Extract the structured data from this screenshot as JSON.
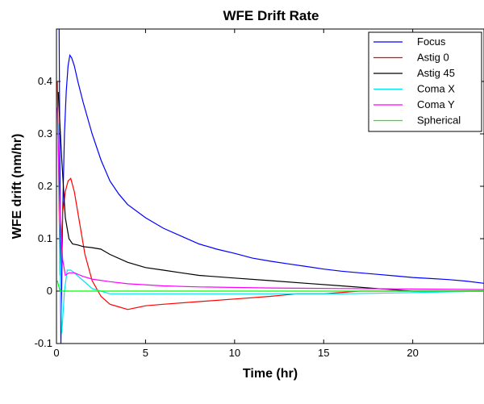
{
  "chart_data": {
    "type": "line",
    "title": "WFE Drift Rate",
    "xlabel": "Time (hr)",
    "ylabel": "WFE drift (nm/hr)",
    "xlim": [
      0,
      24
    ],
    "ylim": [
      -0.1,
      0.5
    ],
    "xticks": [
      0,
      5,
      10,
      15,
      20
    ],
    "yticks": [
      -0.1,
      0,
      0.1,
      0.2,
      0.3,
      0.4
    ],
    "grid": false,
    "legend_position": "top-right",
    "series": [
      {
        "name": "Focus",
        "color": "#0000ff",
        "x": [
          0.15,
          0.25,
          0.35,
          0.45,
          0.55,
          0.65,
          0.75,
          0.85,
          1.0,
          1.2,
          1.5,
          2.0,
          2.5,
          3.0,
          3.5,
          4.0,
          5.0,
          6.0,
          7.0,
          8.0,
          9.0,
          10.0,
          11.0,
          12.0,
          13.0,
          14.0,
          15.0,
          16.0,
          17.0,
          18.0,
          19.0,
          20.0,
          21.0,
          22.0,
          23.0,
          24.0
        ],
        "y": [
          0.5,
          -0.1,
          0.15,
          0.3,
          0.38,
          0.43,
          0.45,
          0.445,
          0.43,
          0.4,
          0.36,
          0.3,
          0.25,
          0.21,
          0.185,
          0.165,
          0.14,
          0.12,
          0.105,
          0.09,
          0.08,
          0.072,
          0.063,
          0.057,
          0.052,
          0.047,
          0.042,
          0.038,
          0.035,
          0.032,
          0.029,
          0.026,
          0.024,
          0.022,
          0.019,
          0.015
        ]
      },
      {
        "name": "Astig 0",
        "color": "#ff0000",
        "x": [
          0.05,
          0.2,
          0.35,
          0.5,
          0.65,
          0.8,
          1.0,
          1.3,
          1.6,
          2.0,
          2.5,
          3.0,
          3.5,
          4.0,
          5.0,
          6.0,
          8.0,
          10.0,
          12.0,
          13.5,
          15.0,
          17.0,
          19.0,
          21.0,
          23.0,
          24.0
        ],
        "y": [
          0.4,
          0.03,
          0.15,
          0.19,
          0.21,
          0.215,
          0.19,
          0.13,
          0.07,
          0.02,
          -0.01,
          -0.025,
          -0.03,
          -0.035,
          -0.028,
          -0.025,
          -0.02,
          -0.015,
          -0.01,
          -0.005,
          -0.005,
          0.0,
          0.0,
          0.0,
          0.0,
          0.0
        ]
      },
      {
        "name": "Astig 45",
        "color": "#000000",
        "x": [
          0.1,
          0.3,
          0.5,
          0.7,
          0.9,
          1.2,
          1.5,
          2.0,
          2.5,
          3.0,
          4.0,
          5.0,
          6.0,
          7.0,
          8.0,
          10.0,
          12.0,
          14.0,
          16.0,
          18.0,
          20.0,
          22.0,
          24.0
        ],
        "y": [
          0.38,
          0.25,
          0.14,
          0.1,
          0.09,
          0.088,
          0.085,
          0.083,
          0.08,
          0.07,
          0.055,
          0.045,
          0.04,
          0.035,
          0.03,
          0.025,
          0.02,
          0.015,
          0.01,
          0.005,
          0.0,
          0.0,
          0.0
        ]
      },
      {
        "name": "Coma X",
        "color": "#00e5ee",
        "x": [
          0.1,
          0.2,
          0.3,
          0.45,
          0.6,
          0.8,
          1.0,
          1.5,
          2.0,
          3.0,
          5.0,
          8.0,
          12.0,
          16.0,
          20.0,
          24.0
        ],
        "y": [
          0.32,
          0.05,
          -0.08,
          0.0,
          0.04,
          0.04,
          0.035,
          0.02,
          0.005,
          -0.005,
          -0.005,
          -0.005,
          -0.005,
          -0.005,
          -0.003,
          0.0
        ]
      },
      {
        "name": "Coma Y",
        "color": "#ff00ff",
        "x": [
          0.05,
          0.2,
          0.35,
          0.5,
          0.7,
          1.0,
          1.5,
          2.0,
          3.0,
          4.0,
          6.0,
          8.0,
          12.0,
          16.0,
          20.0,
          24.0
        ],
        "y": [
          0.35,
          0.15,
          0.06,
          0.03,
          0.035,
          0.035,
          0.028,
          0.023,
          0.018,
          0.014,
          0.01,
          0.008,
          0.006,
          0.005,
          0.004,
          0.003
        ]
      },
      {
        "name": "Spherical",
        "color": "#00ff00",
        "x": [
          0.05,
          0.2,
          0.5,
          1.0,
          5.0,
          10.0,
          15.0,
          20.0,
          24.0
        ],
        "y": [
          0.02,
          0.0,
          0.0,
          0.0,
          0.0,
          0.0,
          0.0,
          0.0,
          0.0
        ]
      }
    ]
  }
}
